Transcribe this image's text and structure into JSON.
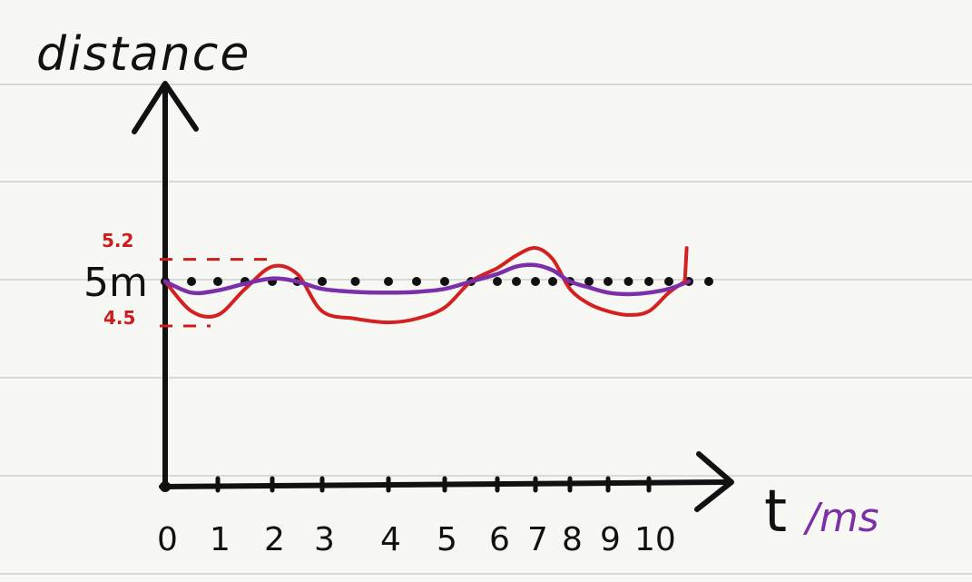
{
  "chart_data": {
    "type": "line",
    "ylabel": "distance",
    "xlabel_t": "t",
    "xlabel_unit": "/ms",
    "x_ticks": [
      "0",
      "1",
      "2",
      "3",
      "4",
      "5",
      "6",
      "7",
      "8",
      "9",
      "10"
    ],
    "y_tick_main": "5m",
    "y_tick_high": "5.2",
    "y_tick_low": "4.5",
    "xlim": [
      0,
      11.6
    ],
    "ylim": [
      0,
      8
    ],
    "colors": {
      "axis": "#111111",
      "raw": "#d42020",
      "smooth": "#7b2fa8",
      "ruled": "#d9d9d6",
      "guide": "#cc1c1c"
    },
    "series": [
      {
        "key": "red",
        "x": [
          0,
          0.5,
          1,
          1.5,
          2,
          2.5,
          3,
          3.5,
          4,
          4.5,
          5,
          5.5,
          6,
          6.5,
          7,
          7.5,
          8,
          8.5,
          9,
          9.5,
          10,
          10.5,
          10.9,
          11
        ],
        "y": [
          5.0,
          4.6,
          4.55,
          4.9,
          5.2,
          5.1,
          4.6,
          4.5,
          4.45,
          4.5,
          4.65,
          5.0,
          5.18,
          5.35,
          5.45,
          5.3,
          4.9,
          4.7,
          4.6,
          4.55,
          4.6,
          4.85,
          5.0,
          5.45
        ]
      },
      {
        "key": "purple",
        "x": [
          0,
          0.5,
          1,
          1.5,
          2,
          2.5,
          3,
          3.5,
          4,
          4.5,
          5,
          5.5,
          6,
          6.5,
          7,
          7.5,
          8,
          8.5,
          9,
          9.5,
          10,
          10.5,
          11
        ],
        "y": [
          5.0,
          4.85,
          4.88,
          4.97,
          5.04,
          5.0,
          4.9,
          4.86,
          4.85,
          4.86,
          4.9,
          5.0,
          5.1,
          5.2,
          5.22,
          5.15,
          5.0,
          4.92,
          4.85,
          4.83,
          4.85,
          4.9,
          5.0
        ]
      },
      {
        "key": "dots",
        "x": [
          0,
          0.5,
          1,
          1.5,
          2,
          2.5,
          3,
          3.5,
          4,
          4.5,
          5,
          5.5,
          6,
          6.5,
          7,
          7.5,
          8,
          8.5,
          9,
          9.5,
          10,
          10.5,
          11,
          11.5
        ],
        "y": [
          5.0,
          5.0,
          5.0,
          5.0,
          5.0,
          5.0,
          5.0,
          5.0,
          5.0,
          5.0,
          5.0,
          5.0,
          5.0,
          5.0,
          5.0,
          5.0,
          5.0,
          5.0,
          5.0,
          5.0,
          5.0,
          5.0,
          5.0,
          5.0
        ]
      }
    ]
  }
}
